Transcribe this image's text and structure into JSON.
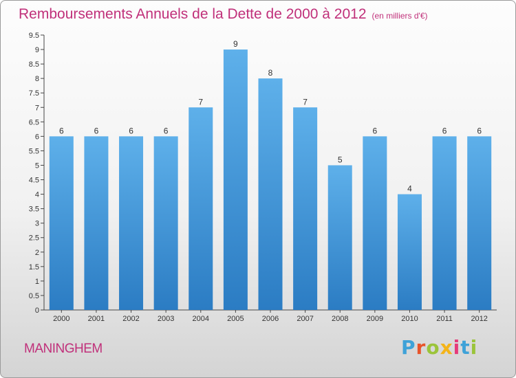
{
  "header": {
    "title": "Remboursements Annuels de la Dette de 2000 à 2012",
    "unit": "(en milliers d'€)"
  },
  "footer": {
    "commune": "MANINGHEM",
    "logo_text": "Proxiti"
  },
  "colors": {
    "bar_top": "#5eb0ea",
    "bar_bottom": "#2b7cc3",
    "title": "#c0307a",
    "logo_letters": [
      "#3fa2d8",
      "#e8542a",
      "#9bc43a",
      "#f4b41a",
      "#e63b7a",
      "#3fa2d8",
      "#9bc43a"
    ]
  },
  "chart_data": {
    "type": "bar",
    "title": "Remboursements Annuels de la Dette de 2000 à 2012",
    "unit": "(en milliers d'€)",
    "categories": [
      "2000",
      "2001",
      "2002",
      "2003",
      "2004",
      "2005",
      "2006",
      "2007",
      "2008",
      "2009",
      "2010",
      "2011",
      "2012"
    ],
    "values": [
      6,
      6,
      6,
      6,
      7,
      9,
      8,
      7,
      5,
      6,
      4,
      6,
      6
    ],
    "ylim": [
      0,
      9.5
    ],
    "yticks": [
      0,
      0.5,
      1,
      1.5,
      2,
      2.5,
      3,
      3.5,
      4,
      4.5,
      5,
      5.5,
      6,
      6.5,
      7,
      7.5,
      8,
      8.5,
      9,
      9.5
    ],
    "ytick_labels": [
      "0",
      "0.5",
      "1",
      "1.5",
      "2",
      "2.5",
      "3",
      "3.5",
      "4",
      "4.5",
      "5",
      "5.5",
      "6",
      "6.5",
      "7",
      "7.5",
      "8",
      "8.5",
      "9",
      "9.5"
    ],
    "grid": false,
    "legend": "none"
  }
}
